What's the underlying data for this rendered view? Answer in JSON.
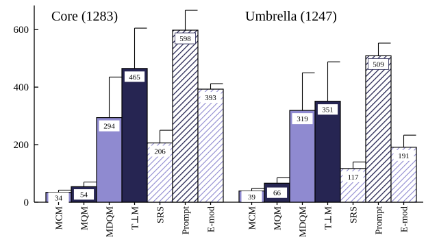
{
  "chart_data": {
    "type": "bar",
    "y_ticks": [
      0,
      200,
      400,
      600
    ],
    "ylim": [
      0,
      700
    ],
    "grid": false,
    "groups": [
      {
        "title": "Core (1283)",
        "bars": [
          {
            "category": "MCM",
            "value": 34,
            "error_top": 42,
            "color": "#8f8ad0",
            "hatch": false
          },
          {
            "category": "MQM",
            "value": 54,
            "error_top": 70,
            "color": "#262552",
            "hatch": false
          },
          {
            "category": "MDQM",
            "value": 294,
            "error_top": 435,
            "color": "#8f8ad0",
            "hatch": false
          },
          {
            "category": "T⊥M",
            "value": 465,
            "error_top": 605,
            "color": "#262552",
            "hatch": false
          },
          {
            "category": "SRS",
            "value": 206,
            "error_top": 250,
            "color": "#8f8ad0",
            "hatch": true
          },
          {
            "category": "Prompt",
            "value": 598,
            "error_top": 667,
            "color": "#262552",
            "hatch": true
          },
          {
            "category": "E-mod",
            "value": 393,
            "error_top": 412,
            "color": "#8f8ad0",
            "hatch": true
          }
        ]
      },
      {
        "title": "Umbrella (1247)",
        "bars": [
          {
            "category": "MCM",
            "value": 39,
            "error_top": 48,
            "color": "#8f8ad0",
            "hatch": false
          },
          {
            "category": "MQM",
            "value": 66,
            "error_top": 85,
            "color": "#262552",
            "hatch": false
          },
          {
            "category": "MDQM",
            "value": 319,
            "error_top": 450,
            "color": "#8f8ad0",
            "hatch": false
          },
          {
            "category": "T⊥M",
            "value": 351,
            "error_top": 488,
            "color": "#262552",
            "hatch": false
          },
          {
            "category": "SRS",
            "value": 117,
            "error_top": 140,
            "color": "#8f8ad0",
            "hatch": true
          },
          {
            "category": "Prompt",
            "value": 509,
            "error_top": 553,
            "color": "#262552",
            "hatch": true
          },
          {
            "category": "E-mod",
            "value": 191,
            "error_top": 233,
            "color": "#8f8ad0",
            "hatch": true
          }
        ]
      }
    ]
  }
}
